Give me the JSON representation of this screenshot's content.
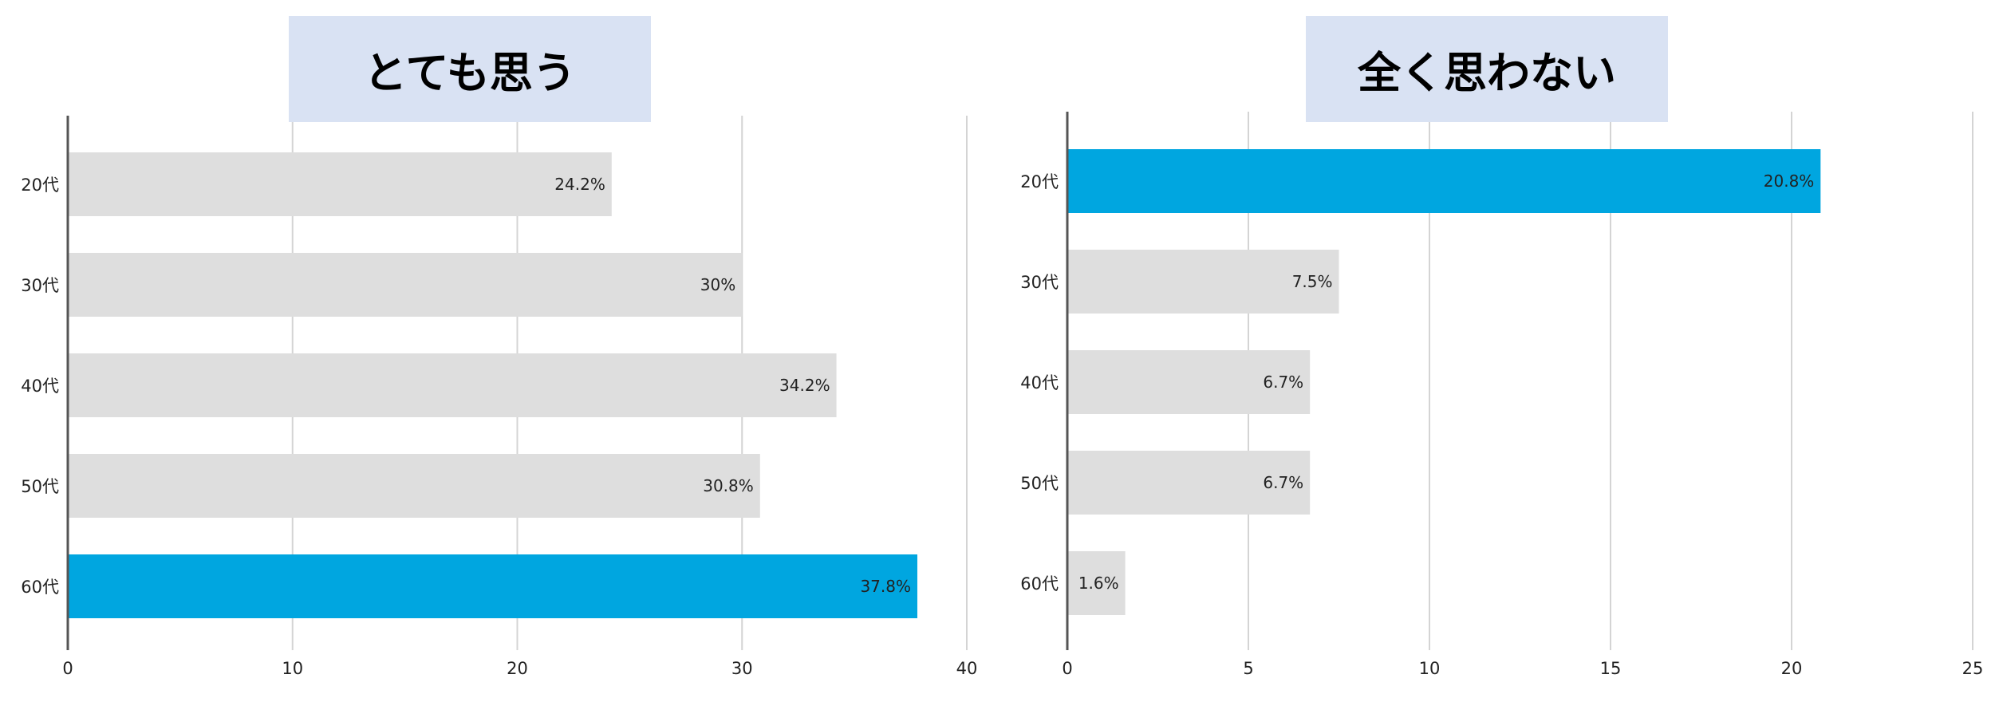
{
  "colors": {
    "bar_default": "#dedede",
    "bar_highlight": "#00a6e0",
    "title_bg": "#d9e2f3",
    "gridline": "#d4d4d4",
    "axis": "#555555"
  },
  "chart_data": [
    {
      "type": "bar",
      "orientation": "horizontal",
      "title": "とても思う",
      "categories": [
        "20代",
        "30代",
        "40代",
        "50代",
        "60代"
      ],
      "values": [
        24.2,
        30,
        34.2,
        30.8,
        37.8
      ],
      "data_labels": [
        "24.2%",
        "30%",
        "34.2%",
        "30.8%",
        "37.8%"
      ],
      "highlight": [
        false,
        false,
        false,
        false,
        true
      ],
      "xlim": [
        0,
        40
      ],
      "xticks": [
        0,
        10,
        20,
        30,
        40
      ],
      "grid": true
    },
    {
      "type": "bar",
      "orientation": "horizontal",
      "title": "全く思わない",
      "categories": [
        "20代",
        "30代",
        "40代",
        "50代",
        "60代"
      ],
      "values": [
        20.8,
        7.5,
        6.7,
        6.7,
        1.6
      ],
      "data_labels": [
        "20.8%",
        "7.5%",
        "6.7%",
        "6.7%",
        "1.6%"
      ],
      "highlight": [
        true,
        false,
        false,
        false,
        false
      ],
      "xlim": [
        0,
        25
      ],
      "xticks": [
        0,
        5,
        10,
        15,
        20,
        25
      ],
      "grid": true
    }
  ]
}
